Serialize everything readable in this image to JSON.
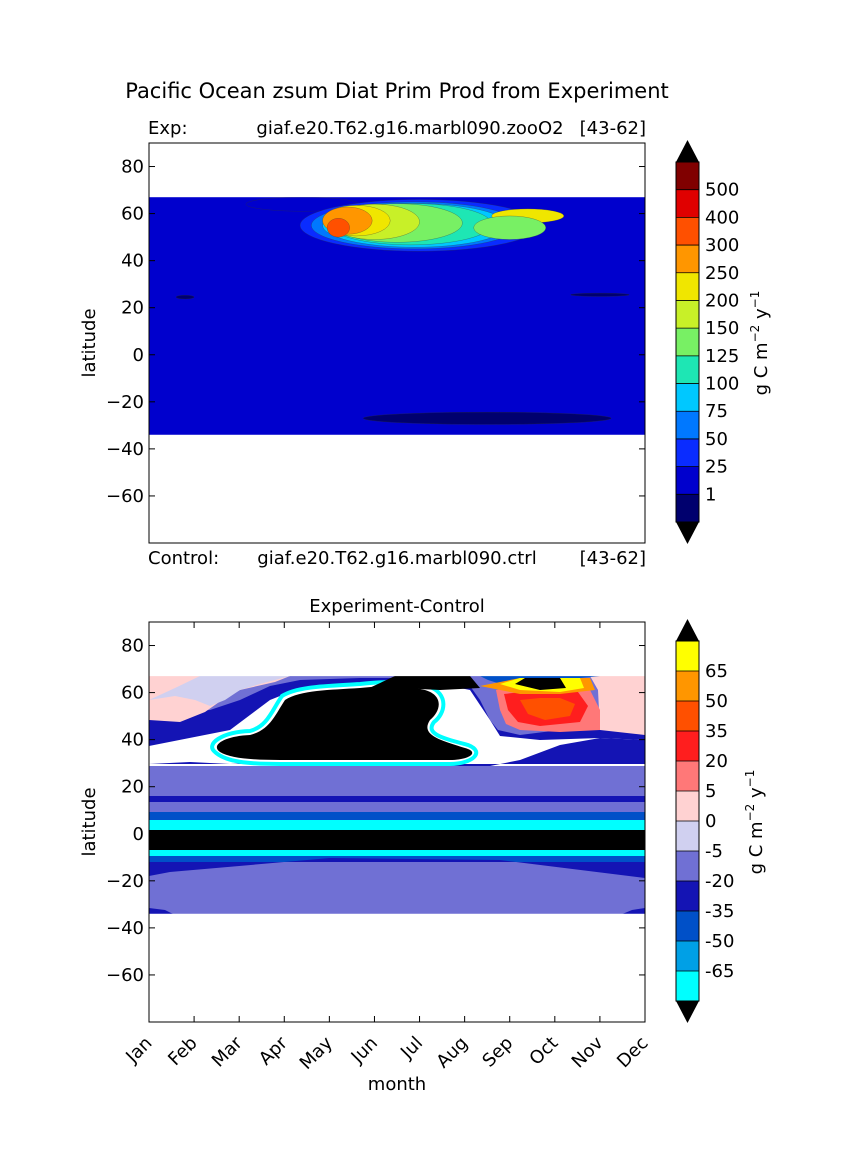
{
  "figure": {
    "title": "Pacific Ocean zsum Diat Prim Prod from Experiment"
  },
  "chart_data": [
    {
      "type": "heatmap",
      "panel": "experiment",
      "header": {
        "left": "Exp:",
        "center": "giaf.e20.T62.g16.marbl090.zooO2",
        "right": "[43-62]"
      },
      "footer": {
        "left": "Control:",
        "center": "giaf.e20.T62.g16.marbl090.ctrl",
        "right": "[43-62]"
      },
      "xlabel": "",
      "ylabel": "latitude",
      "ylim": [
        -80,
        90
      ],
      "yticks": [
        80,
        60,
        40,
        20,
        0,
        -20,
        -40,
        -60
      ],
      "ytick_labels": [
        "80",
        "60",
        "40",
        "20",
        "0",
        "−20",
        "−40",
        "−60"
      ],
      "data_lat_range": [
        -34,
        67
      ],
      "colorbar": {
        "label_main": "g C m",
        "label_exp1": "−2",
        "label_mid": " y",
        "label_exp2": "−1",
        "levels": [
          "1",
          "25",
          "50",
          "75",
          "100",
          "125",
          "150",
          "200",
          "250",
          "300",
          "400",
          "500"
        ],
        "colors": [
          "#00006e",
          "#0000cd",
          "#0a2cff",
          "#0078ff",
          "#00c8ff",
          "#1ee6b4",
          "#78f064",
          "#c8f028",
          "#f0e600",
          "#ff9600",
          "#ff5000",
          "#e00000",
          "#800000"
        ],
        "extend_low_color": "#000000",
        "extend_high_color": "#000000"
      },
      "features": [
        {
          "level": 1,
          "month": 3.4,
          "lat": 64,
          "w": 2.5,
          "h": 3.0
        },
        {
          "level": 2,
          "month": 6.0,
          "lat": 55,
          "w": 5.3,
          "h": 11.0
        },
        {
          "level": 3,
          "month": 5.9,
          "lat": 55,
          "w": 4.6,
          "h": 10.0
        },
        {
          "level": 4,
          "month": 5.9,
          "lat": 55,
          "w": 4.1,
          "h": 9.3
        },
        {
          "level": 5,
          "month": 5.8,
          "lat": 55.5,
          "w": 3.6,
          "h": 8.8
        },
        {
          "level": 6,
          "month": 5.5,
          "lat": 56,
          "w": 2.9,
          "h": 8.2
        },
        {
          "level": 7,
          "month": 5.0,
          "lat": 56.5,
          "w": 2.0,
          "h": 7.5
        },
        {
          "level": 8,
          "month": 4.6,
          "lat": 57,
          "w": 1.5,
          "h": 6.5
        },
        {
          "level": 9,
          "month": 4.4,
          "lat": 57,
          "w": 1.1,
          "h": 5.8
        },
        {
          "level": 10,
          "month": 4.2,
          "lat": 54,
          "w": 0.5,
          "h": 4.0
        },
        {
          "level": 8,
          "month": 8.4,
          "lat": 59,
          "w": 1.6,
          "h": 3.0
        },
        {
          "level": 6,
          "month": 8.0,
          "lat": 54,
          "w": 1.6,
          "h": 5.0
        },
        {
          "level": 0,
          "month": 7.5,
          "lat": -27,
          "w": 5.5,
          "h": 2.6
        },
        {
          "level": 0,
          "month": 0.8,
          "lat": 24.5,
          "w": 0.4,
          "h": 0.8
        },
        {
          "level": 0,
          "month": 10.0,
          "lat": 25.5,
          "w": 1.3,
          "h": 0.7
        }
      ]
    },
    {
      "type": "heatmap",
      "panel": "difference",
      "title": "Experiment-Control",
      "xlabel": "month",
      "ylabel": "latitude",
      "ylim": [
        -80,
        90
      ],
      "yticks": [
        80,
        60,
        40,
        20,
        0,
        -20,
        -40,
        -60
      ],
      "ytick_labels": [
        "80",
        "60",
        "40",
        "20",
        "0",
        "−20",
        "−40",
        "−60"
      ],
      "xticks": [
        "Jan",
        "Feb",
        "Mar",
        "Apr",
        "May",
        "Jun",
        "Jul",
        "Aug",
        "Sep",
        "Oct",
        "Nov",
        "Dec"
      ],
      "data_lat_range": [
        -34,
        67
      ],
      "colorbar": {
        "label_main": "g C m",
        "label_exp1": "−2",
        "label_mid": " y",
        "label_exp2": "−1",
        "levels": [
          "-65",
          "-50",
          "-35",
          "-20",
          "-5",
          "0",
          "5",
          "20",
          "35",
          "50",
          "65"
        ],
        "colors": [
          "#00ffff",
          "#00a0e6",
          "#0050c8",
          "#1414b4",
          "#7070d4",
          "#d0d0f0",
          "#ffd2d2",
          "#ff7878",
          "#ff1e1e",
          "#ff5000",
          "#ff9600",
          "#ffff00"
        ],
        "extend_low_color": "#000000",
        "extend_high_color": "#000000"
      }
    }
  ]
}
